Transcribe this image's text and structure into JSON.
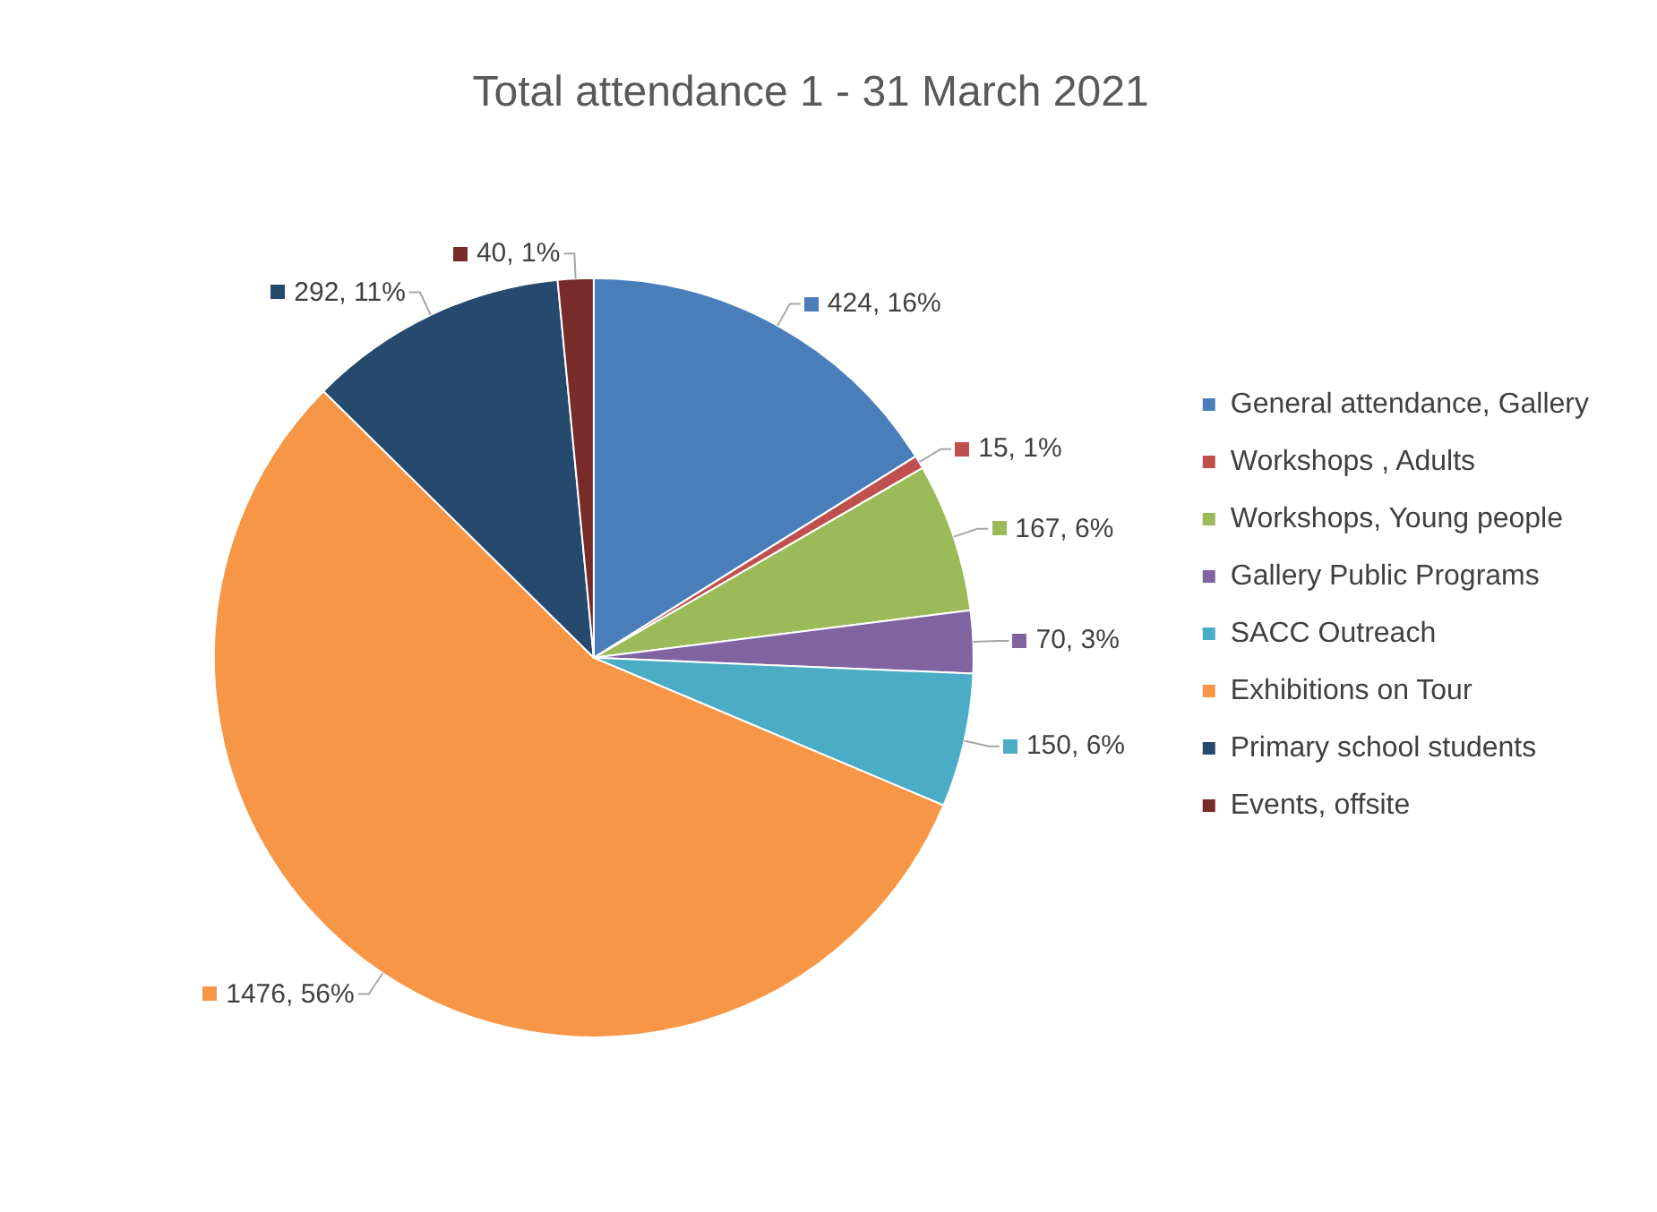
{
  "chart_data": {
    "type": "pie",
    "title": "Total attendance 1 - 31 March 2021",
    "categories": [
      "General attendance, Gallery",
      "Workshops , Adults",
      "Workshops, Young people",
      "Gallery Public Programs",
      "SACC Outreach",
      "Exhibitions on Tour",
      "Primary school students",
      "Events, offsite"
    ],
    "values": [
      424,
      15,
      167,
      70,
      150,
      1476,
      292,
      40
    ],
    "colors": [
      "#4a7ebb",
      "#c0504d",
      "#9bbb59",
      "#8064a2",
      "#4bacc6",
      "#f79646",
      "#264a6e",
      "#772c2a"
    ],
    "value_labels": [
      "424, 16%",
      "15, 1%",
      "167, 6%",
      "70, 3%",
      "150, 6%",
      "1476, 56%",
      "292, 11%",
      "40, 1%"
    ],
    "legend": "right"
  }
}
